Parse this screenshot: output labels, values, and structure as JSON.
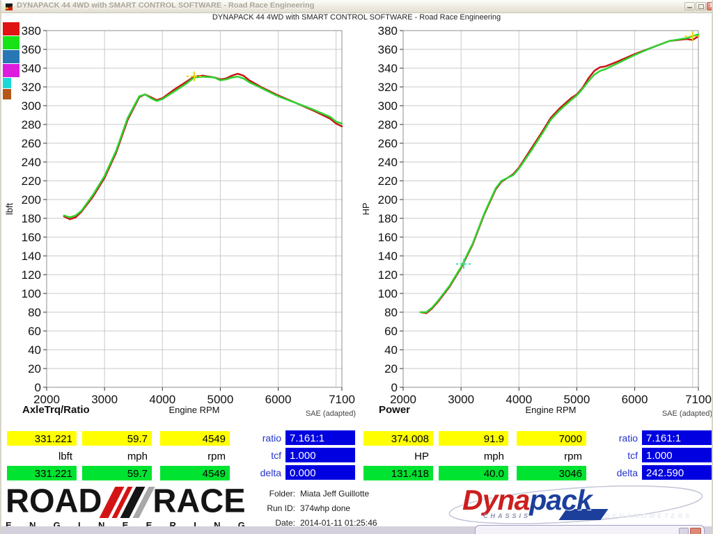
{
  "window": {
    "title": "DYNAPACK 44 4WD with SMART CONTROL SOFTWARE - Road Race Engineering",
    "heading": "DYNAPACK 44 4WD with SMART CONTROL SOFTWARE - Road Race Engineering"
  },
  "legend": {
    "swatches": [
      {
        "color": "#e01212",
        "size": "wide"
      },
      {
        "color": "#16e216",
        "size": "wide"
      },
      {
        "color": "#2877b4",
        "size": "wide"
      },
      {
        "color": "#dd1cdd",
        "size": "wide"
      },
      {
        "color": "#1cd8d8",
        "size": "narrow"
      },
      {
        "color": "#b45618",
        "size": "narrow"
      }
    ]
  },
  "chart_data": [
    {
      "type": "line",
      "title": "AxleTrq/Ratio",
      "xlabel": "Engine RPM",
      "ylabel": "lbft",
      "note": "SAE (adapted)",
      "xlim": [
        2000,
        7100
      ],
      "ylim": [
        0,
        380
      ],
      "ytick_step": 20,
      "xticks": [
        2000,
        3000,
        4000,
        5000,
        6000,
        7100
      ],
      "xtick_labels": [
        "2000",
        "3000",
        "4000",
        "5000",
        "6000",
        "7100"
      ],
      "grid_x": [
        3000,
        4000,
        5000,
        6000,
        7000
      ],
      "x": [
        2300,
        2400,
        2500,
        2600,
        2800,
        3000,
        3200,
        3400,
        3600,
        3700,
        3800,
        3900,
        4000,
        4200,
        4400,
        4549,
        4700,
        4900,
        5000,
        5100,
        5200,
        5300,
        5400,
        5500,
        5700,
        6000,
        6300,
        6600,
        6900,
        7000,
        7100
      ],
      "series": [
        {
          "name": "run-current",
          "color": "#c81414",
          "values": [
            182,
            179,
            181,
            187,
            203,
            223,
            250,
            285,
            309,
            312,
            309,
            306,
            308,
            317,
            325,
            331,
            332,
            330,
            328,
            329,
            332,
            334,
            332,
            327,
            320,
            311,
            303,
            295,
            286,
            281,
            278
          ]
        },
        {
          "name": "run-reference",
          "color": "#2ed32e",
          "values": [
            183,
            181,
            183,
            188,
            205,
            225,
            252,
            287,
            310,
            312,
            308,
            305,
            307,
            315,
            323,
            330,
            331,
            330,
            327,
            328,
            330,
            331,
            329,
            325,
            319,
            310,
            303,
            296,
            288,
            283,
            281
          ]
        }
      ],
      "markers": [
        {
          "x": 4549,
          "y": 331.2,
          "color": "#e8d400",
          "name": "cursor-yellow"
        }
      ]
    },
    {
      "type": "line",
      "title": "Power",
      "xlabel": "Engine RPM",
      "ylabel": "HP",
      "note": "SAE (adapted)",
      "xlim": [
        2000,
        7100
      ],
      "ylim": [
        0,
        380
      ],
      "ytick_step": 20,
      "xticks": [
        2000,
        3000,
        4000,
        5000,
        6000,
        7100
      ],
      "xtick_labels": [
        "2000",
        "3000",
        "4000",
        "5000",
        "6000",
        "7100"
      ],
      "grid_x": [
        3000,
        4000,
        5000,
        6000,
        7000
      ],
      "x": [
        2300,
        2400,
        2500,
        2600,
        2800,
        3000,
        3200,
        3400,
        3600,
        3700,
        3800,
        3900,
        4000,
        4200,
        4400,
        4549,
        4700,
        4900,
        5000,
        5100,
        5200,
        5300,
        5400,
        5500,
        5700,
        6000,
        6300,
        6600,
        6900,
        7000,
        7100
      ],
      "series": [
        {
          "name": "run-current",
          "color": "#c81414",
          "values": [
            80,
            79,
            84,
            91,
            107,
            127,
            152,
            184,
            211,
            219,
            223,
            227,
            234,
            253,
            272,
            287,
            297,
            308,
            312,
            319,
            329,
            337,
            341,
            342,
            347,
            355,
            362,
            369,
            371,
            370,
            374
          ]
        },
        {
          "name": "run-reference",
          "color": "#2ed32e",
          "values": [
            80,
            80,
            85,
            92,
            108,
            128,
            153,
            185,
            212,
            220,
            223,
            226,
            233,
            251,
            270,
            285,
            295,
            306,
            311,
            318,
            326,
            333,
            337,
            339,
            345,
            354,
            362,
            369,
            372,
            374,
            376
          ]
        }
      ],
      "markers": [
        {
          "x": 3046,
          "y": 131.4,
          "color": "#3cd9a8",
          "name": "cursor-green"
        },
        {
          "x": 7000,
          "y": 374.0,
          "color": "#e8d400",
          "name": "cursor-yellow"
        }
      ]
    }
  ],
  "readouts": {
    "left": {
      "yellow": [
        "331.221",
        "59.7",
        "4549"
      ],
      "units": [
        "lbft",
        "mph",
        "rpm"
      ],
      "green": [
        "331.221",
        "59.7",
        "4549"
      ],
      "params": [
        {
          "label": "ratio",
          "value": "7.161:1"
        },
        {
          "label": "tcf",
          "value": "1.000"
        },
        {
          "label": "delta",
          "value": "0.000"
        }
      ]
    },
    "right": {
      "yellow": [
        "374.008",
        "91.9",
        "7000"
      ],
      "units": [
        "HP",
        "mph",
        "rpm"
      ],
      "green": [
        "131.418",
        "40.0",
        "3046"
      ],
      "params": [
        {
          "label": "ratio",
          "value": "7.161:1"
        },
        {
          "label": "tcf",
          "value": "1.000"
        },
        {
          "label": "delta",
          "value": "242.590"
        }
      ]
    },
    "colors": {
      "yellow": "#ffff00",
      "green": "#00e431",
      "blue": "#0000e0"
    }
  },
  "footer": {
    "info": [
      {
        "label": "Folder:",
        "value": "Miata Jeff Guillotte"
      },
      {
        "label": "Run ID:",
        "value": "374whp done"
      },
      {
        "label": "Date:",
        "value": "2014-01-11 01:25:46"
      }
    ],
    "roadrace": {
      "word1": "ROAD",
      "word2": "RACE",
      "sub": "ENGINEERING",
      "stripes": [
        {
          "color": "#d41414",
          "width": 13
        },
        {
          "color": "#d41414",
          "width": 7
        },
        {
          "color": "#151515",
          "width": 13
        },
        {
          "color": "#a8a8a8",
          "width": 9
        }
      ]
    },
    "dynapack": {
      "word1": "Dyna",
      "word2": "pack",
      "sub1": "CHASSIS",
      "sub2": "DYNAMOMETERS"
    }
  }
}
